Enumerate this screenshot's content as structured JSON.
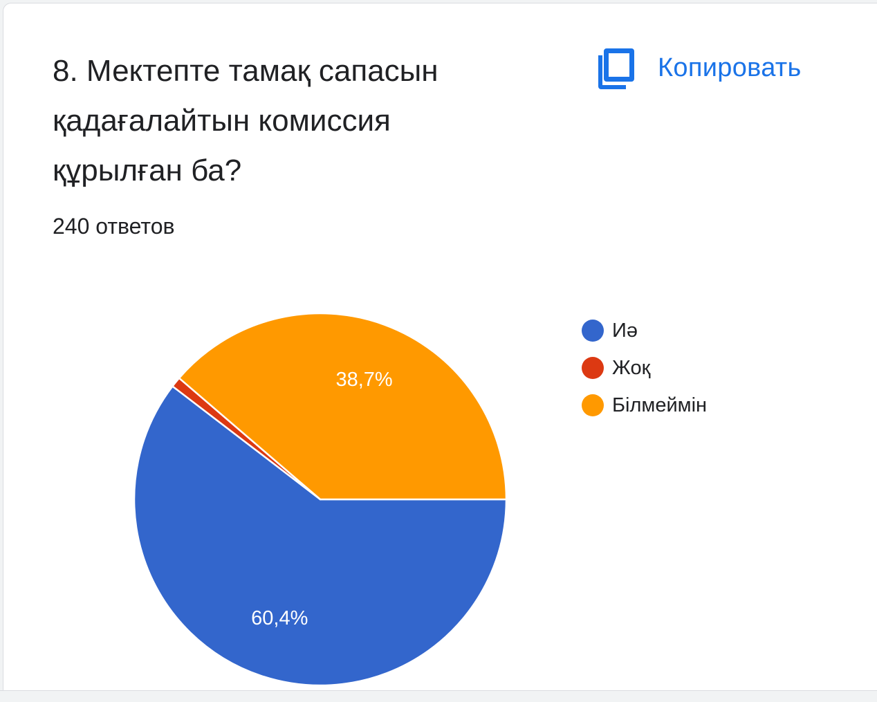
{
  "question": {
    "title_lines": [
      "8. Мектепте тамақ сапасын",
      "қадағалайтын комиссия",
      "құрылған ба?"
    ],
    "responses": "240 ответов"
  },
  "copy": {
    "label": "Копировать",
    "icon": "copy-icon",
    "color": "#1a73e8"
  },
  "chart_data": {
    "type": "pie",
    "title": "8. Мектепте тамақ сапасын қадағалайтын комиссия құрылған ба?",
    "start": "3 o'clock, clockwise",
    "legend_position": "right",
    "slices": [
      {
        "label": "Иә",
        "value": 60.4,
        "display": "60,4%",
        "color": "#3366cc",
        "show_label": true
      },
      {
        "label": "Жоқ",
        "value": 0.9,
        "display": "",
        "color": "#dc3912",
        "show_label": false
      },
      {
        "label": "Білмеймін",
        "value": 38.7,
        "display": "38,7%",
        "color": "#ff9900",
        "show_label": true
      }
    ]
  }
}
